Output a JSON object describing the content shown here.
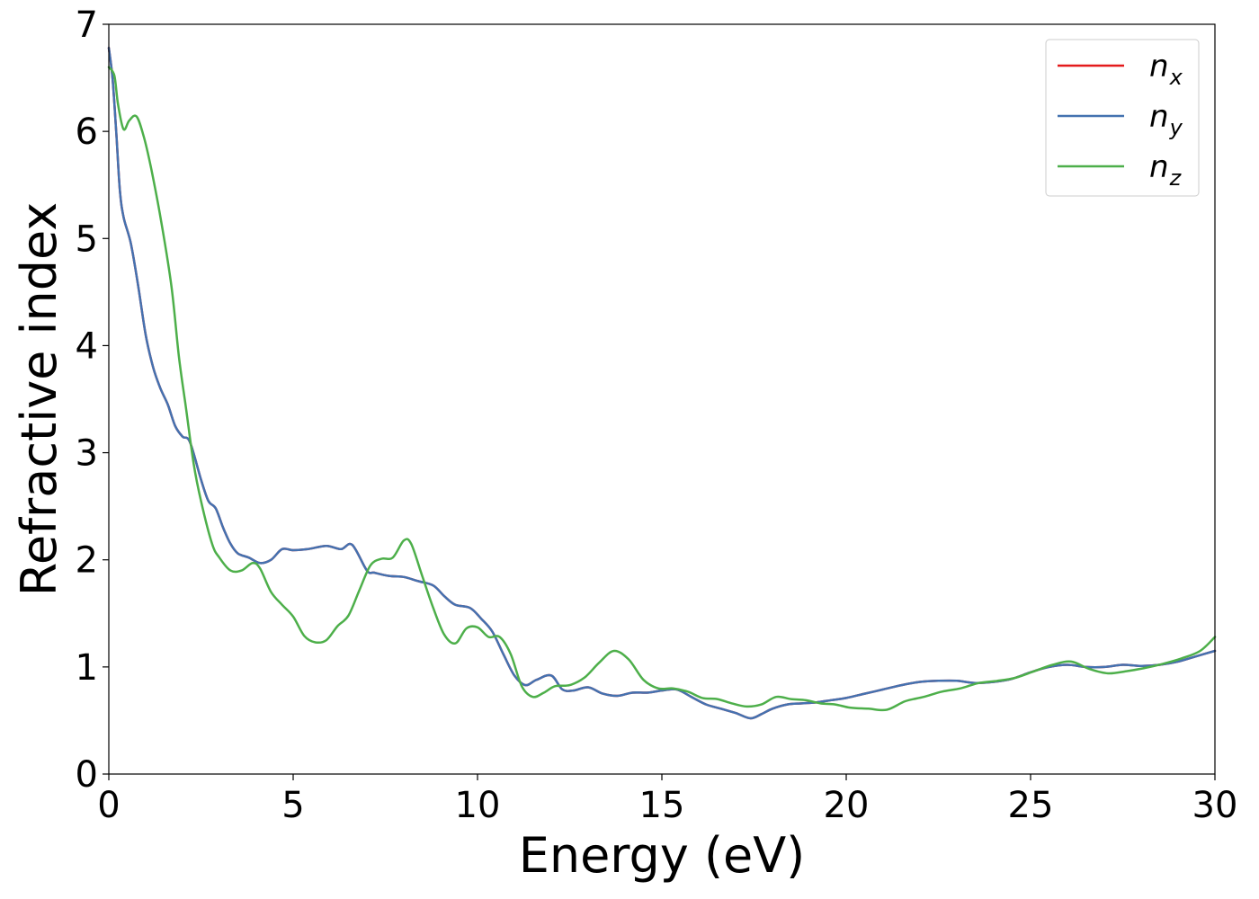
{
  "chart_data": {
    "type": "line",
    "title": "",
    "xlabel": "Energy (eV)",
    "ylabel": "Refractive index",
    "xlim": [
      0,
      30
    ],
    "ylim": [
      0,
      7
    ],
    "xticks": [
      0,
      5,
      10,
      15,
      20,
      25,
      30
    ],
    "yticks": [
      0,
      1,
      2,
      3,
      4,
      5,
      6,
      7
    ],
    "grid": false,
    "legend_position": "top-right",
    "series": [
      {
        "name": "n_x",
        "label_base": "n",
        "label_sub": "x",
        "color": "#e41a1c",
        "x": [
          0,
          0.1,
          0.2,
          0.3,
          0.4,
          0.6,
          0.8,
          1.0,
          1.2,
          1.4,
          1.6,
          1.8,
          2.0,
          2.2,
          2.5,
          2.7,
          2.9,
          3.1,
          3.3,
          3.5,
          3.8,
          4.1,
          4.4,
          4.7,
          5.0,
          5.4,
          5.9,
          6.3,
          6.6,
          7.0,
          7.2,
          7.6,
          8.0,
          8.4,
          8.8,
          9.1,
          9.4,
          9.8,
          10.1,
          10.4,
          10.7,
          11.0,
          11.3,
          11.6,
          12.0,
          12.3,
          12.6,
          13.0,
          13.4,
          13.8,
          14.2,
          14.6,
          15.0,
          15.4,
          15.8,
          16.2,
          16.6,
          17.0,
          17.4,
          17.7,
          18.0,
          18.4,
          18.8,
          19.2,
          19.6,
          20.0,
          20.5,
          21.0,
          21.5,
          22.0,
          22.5,
          23.0,
          23.5,
          24.0,
          24.5,
          25.0,
          25.5,
          26.0,
          26.5,
          27.0,
          27.5,
          28.0,
          28.5,
          29.0,
          29.5,
          30.0
        ],
        "y": [
          6.78,
          6.5,
          6.0,
          5.45,
          5.2,
          4.95,
          4.55,
          4.1,
          3.8,
          3.6,
          3.45,
          3.25,
          3.15,
          3.1,
          2.75,
          2.55,
          2.48,
          2.3,
          2.15,
          2.06,
          2.02,
          1.97,
          2.0,
          2.1,
          2.09,
          2.1,
          2.13,
          2.1,
          2.14,
          1.9,
          1.88,
          1.85,
          1.84,
          1.8,
          1.76,
          1.66,
          1.58,
          1.55,
          1.45,
          1.33,
          1.12,
          0.92,
          0.83,
          0.88,
          0.92,
          0.79,
          0.78,
          0.81,
          0.75,
          0.73,
          0.76,
          0.76,
          0.78,
          0.79,
          0.72,
          0.65,
          0.61,
          0.57,
          0.52,
          0.56,
          0.61,
          0.65,
          0.66,
          0.67,
          0.69,
          0.71,
          0.75,
          0.79,
          0.83,
          0.86,
          0.87,
          0.87,
          0.85,
          0.86,
          0.89,
          0.95,
          1.0,
          1.02,
          1.0,
          1.0,
          1.02,
          1.01,
          1.02,
          1.05,
          1.1,
          1.15
        ]
      },
      {
        "name": "n_y",
        "label_base": "n",
        "label_sub": "y",
        "color": "#4472b0",
        "x": [
          0,
          0.1,
          0.2,
          0.3,
          0.4,
          0.6,
          0.8,
          1.0,
          1.2,
          1.4,
          1.6,
          1.8,
          2.0,
          2.2,
          2.5,
          2.7,
          2.9,
          3.1,
          3.3,
          3.5,
          3.8,
          4.1,
          4.4,
          4.7,
          5.0,
          5.4,
          5.9,
          6.3,
          6.6,
          7.0,
          7.2,
          7.6,
          8.0,
          8.4,
          8.8,
          9.1,
          9.4,
          9.8,
          10.1,
          10.4,
          10.7,
          11.0,
          11.3,
          11.6,
          12.0,
          12.3,
          12.6,
          13.0,
          13.4,
          13.8,
          14.2,
          14.6,
          15.0,
          15.4,
          15.8,
          16.2,
          16.6,
          17.0,
          17.4,
          17.7,
          18.0,
          18.4,
          18.8,
          19.2,
          19.6,
          20.0,
          20.5,
          21.0,
          21.5,
          22.0,
          22.5,
          23.0,
          23.5,
          24.0,
          24.5,
          25.0,
          25.5,
          26.0,
          26.5,
          27.0,
          27.5,
          28.0,
          28.5,
          29.0,
          29.5,
          30.0
        ],
        "y": [
          6.78,
          6.5,
          6.0,
          5.45,
          5.2,
          4.95,
          4.55,
          4.1,
          3.8,
          3.6,
          3.45,
          3.25,
          3.15,
          3.1,
          2.75,
          2.55,
          2.48,
          2.3,
          2.15,
          2.06,
          2.02,
          1.97,
          2.0,
          2.1,
          2.09,
          2.1,
          2.13,
          2.1,
          2.14,
          1.9,
          1.88,
          1.85,
          1.84,
          1.8,
          1.76,
          1.66,
          1.58,
          1.55,
          1.45,
          1.33,
          1.12,
          0.92,
          0.83,
          0.88,
          0.92,
          0.79,
          0.78,
          0.81,
          0.75,
          0.73,
          0.76,
          0.76,
          0.78,
          0.79,
          0.72,
          0.65,
          0.61,
          0.57,
          0.52,
          0.56,
          0.61,
          0.65,
          0.66,
          0.67,
          0.69,
          0.71,
          0.75,
          0.79,
          0.83,
          0.86,
          0.87,
          0.87,
          0.85,
          0.86,
          0.89,
          0.95,
          1.0,
          1.02,
          1.0,
          1.0,
          1.02,
          1.01,
          1.02,
          1.05,
          1.1,
          1.15
        ]
      },
      {
        "name": "n_z",
        "label_base": "n",
        "label_sub": "z",
        "color": "#4daf4a",
        "x": [
          0,
          0.15,
          0.25,
          0.4,
          0.55,
          0.75,
          0.95,
          1.15,
          1.4,
          1.7,
          1.9,
          2.1,
          2.3,
          2.5,
          2.8,
          3.0,
          3.3,
          3.6,
          3.9,
          4.1,
          4.4,
          4.7,
          5.0,
          5.3,
          5.6,
          5.9,
          6.2,
          6.5,
          6.8,
          7.1,
          7.4,
          7.7,
          8.0,
          8.2,
          8.5,
          8.8,
          9.1,
          9.4,
          9.7,
          10.0,
          10.3,
          10.6,
          10.9,
          11.2,
          11.5,
          11.8,
          12.1,
          12.5,
          12.9,
          13.3,
          13.7,
          14.1,
          14.5,
          14.9,
          15.3,
          15.7,
          16.1,
          16.5,
          16.9,
          17.3,
          17.7,
          18.1,
          18.5,
          18.9,
          19.3,
          19.7,
          20.1,
          20.6,
          21.1,
          21.6,
          22.1,
          22.6,
          23.1,
          23.6,
          24.1,
          24.6,
          25.1,
          25.6,
          26.1,
          26.6,
          27.1,
          27.6,
          28.1,
          28.6,
          29.1,
          29.6,
          30.0
        ],
        "y": [
          6.6,
          6.52,
          6.25,
          6.02,
          6.1,
          6.14,
          5.95,
          5.65,
          5.2,
          4.55,
          3.9,
          3.4,
          2.9,
          2.55,
          2.15,
          2.02,
          1.9,
          1.9,
          1.97,
          1.92,
          1.7,
          1.58,
          1.47,
          1.29,
          1.23,
          1.25,
          1.38,
          1.48,
          1.72,
          1.95,
          2.01,
          2.02,
          2.18,
          2.15,
          1.85,
          1.55,
          1.3,
          1.22,
          1.36,
          1.37,
          1.28,
          1.28,
          1.12,
          0.82,
          0.72,
          0.76,
          0.82,
          0.83,
          0.9,
          1.04,
          1.15,
          1.07,
          0.88,
          0.8,
          0.8,
          0.77,
          0.71,
          0.7,
          0.66,
          0.63,
          0.65,
          0.72,
          0.7,
          0.69,
          0.66,
          0.65,
          0.62,
          0.61,
          0.6,
          0.68,
          0.72,
          0.77,
          0.8,
          0.85,
          0.87,
          0.9,
          0.96,
          1.02,
          1.05,
          0.98,
          0.94,
          0.96,
          0.99,
          1.03,
          1.08,
          1.15,
          1.28
        ]
      }
    ]
  }
}
